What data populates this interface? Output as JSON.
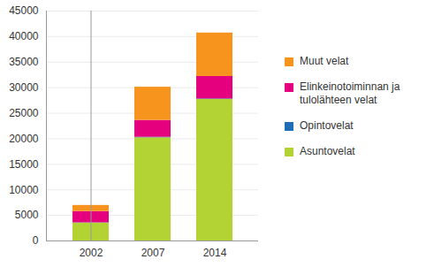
{
  "chart_data": {
    "type": "bar",
    "stacked": true,
    "categories": [
      "2002",
      "2007",
      "2014"
    ],
    "series": [
      {
        "name": "Asuntovelat",
        "color": "#b3d335",
        "values": [
          3500,
          20200,
          27700
        ]
      },
      {
        "name": "Opintovelat",
        "color": "#1f6db5",
        "values": [
          50,
          100,
          100
        ]
      },
      {
        "name": "Elinkeinotoiminnan ja tulolähteen velat",
        "color": "#e5007d",
        "values": [
          2200,
          3300,
          4400
        ]
      },
      {
        "name": "Muut velat",
        "color": "#f7941d",
        "values": [
          1200,
          6500,
          8500
        ]
      }
    ],
    "ylim": [
      0,
      45000
    ],
    "yticks": [
      0,
      5000,
      10000,
      15000,
      20000,
      25000,
      30000,
      35000,
      40000,
      45000
    ],
    "grid": true,
    "legend": "right"
  }
}
